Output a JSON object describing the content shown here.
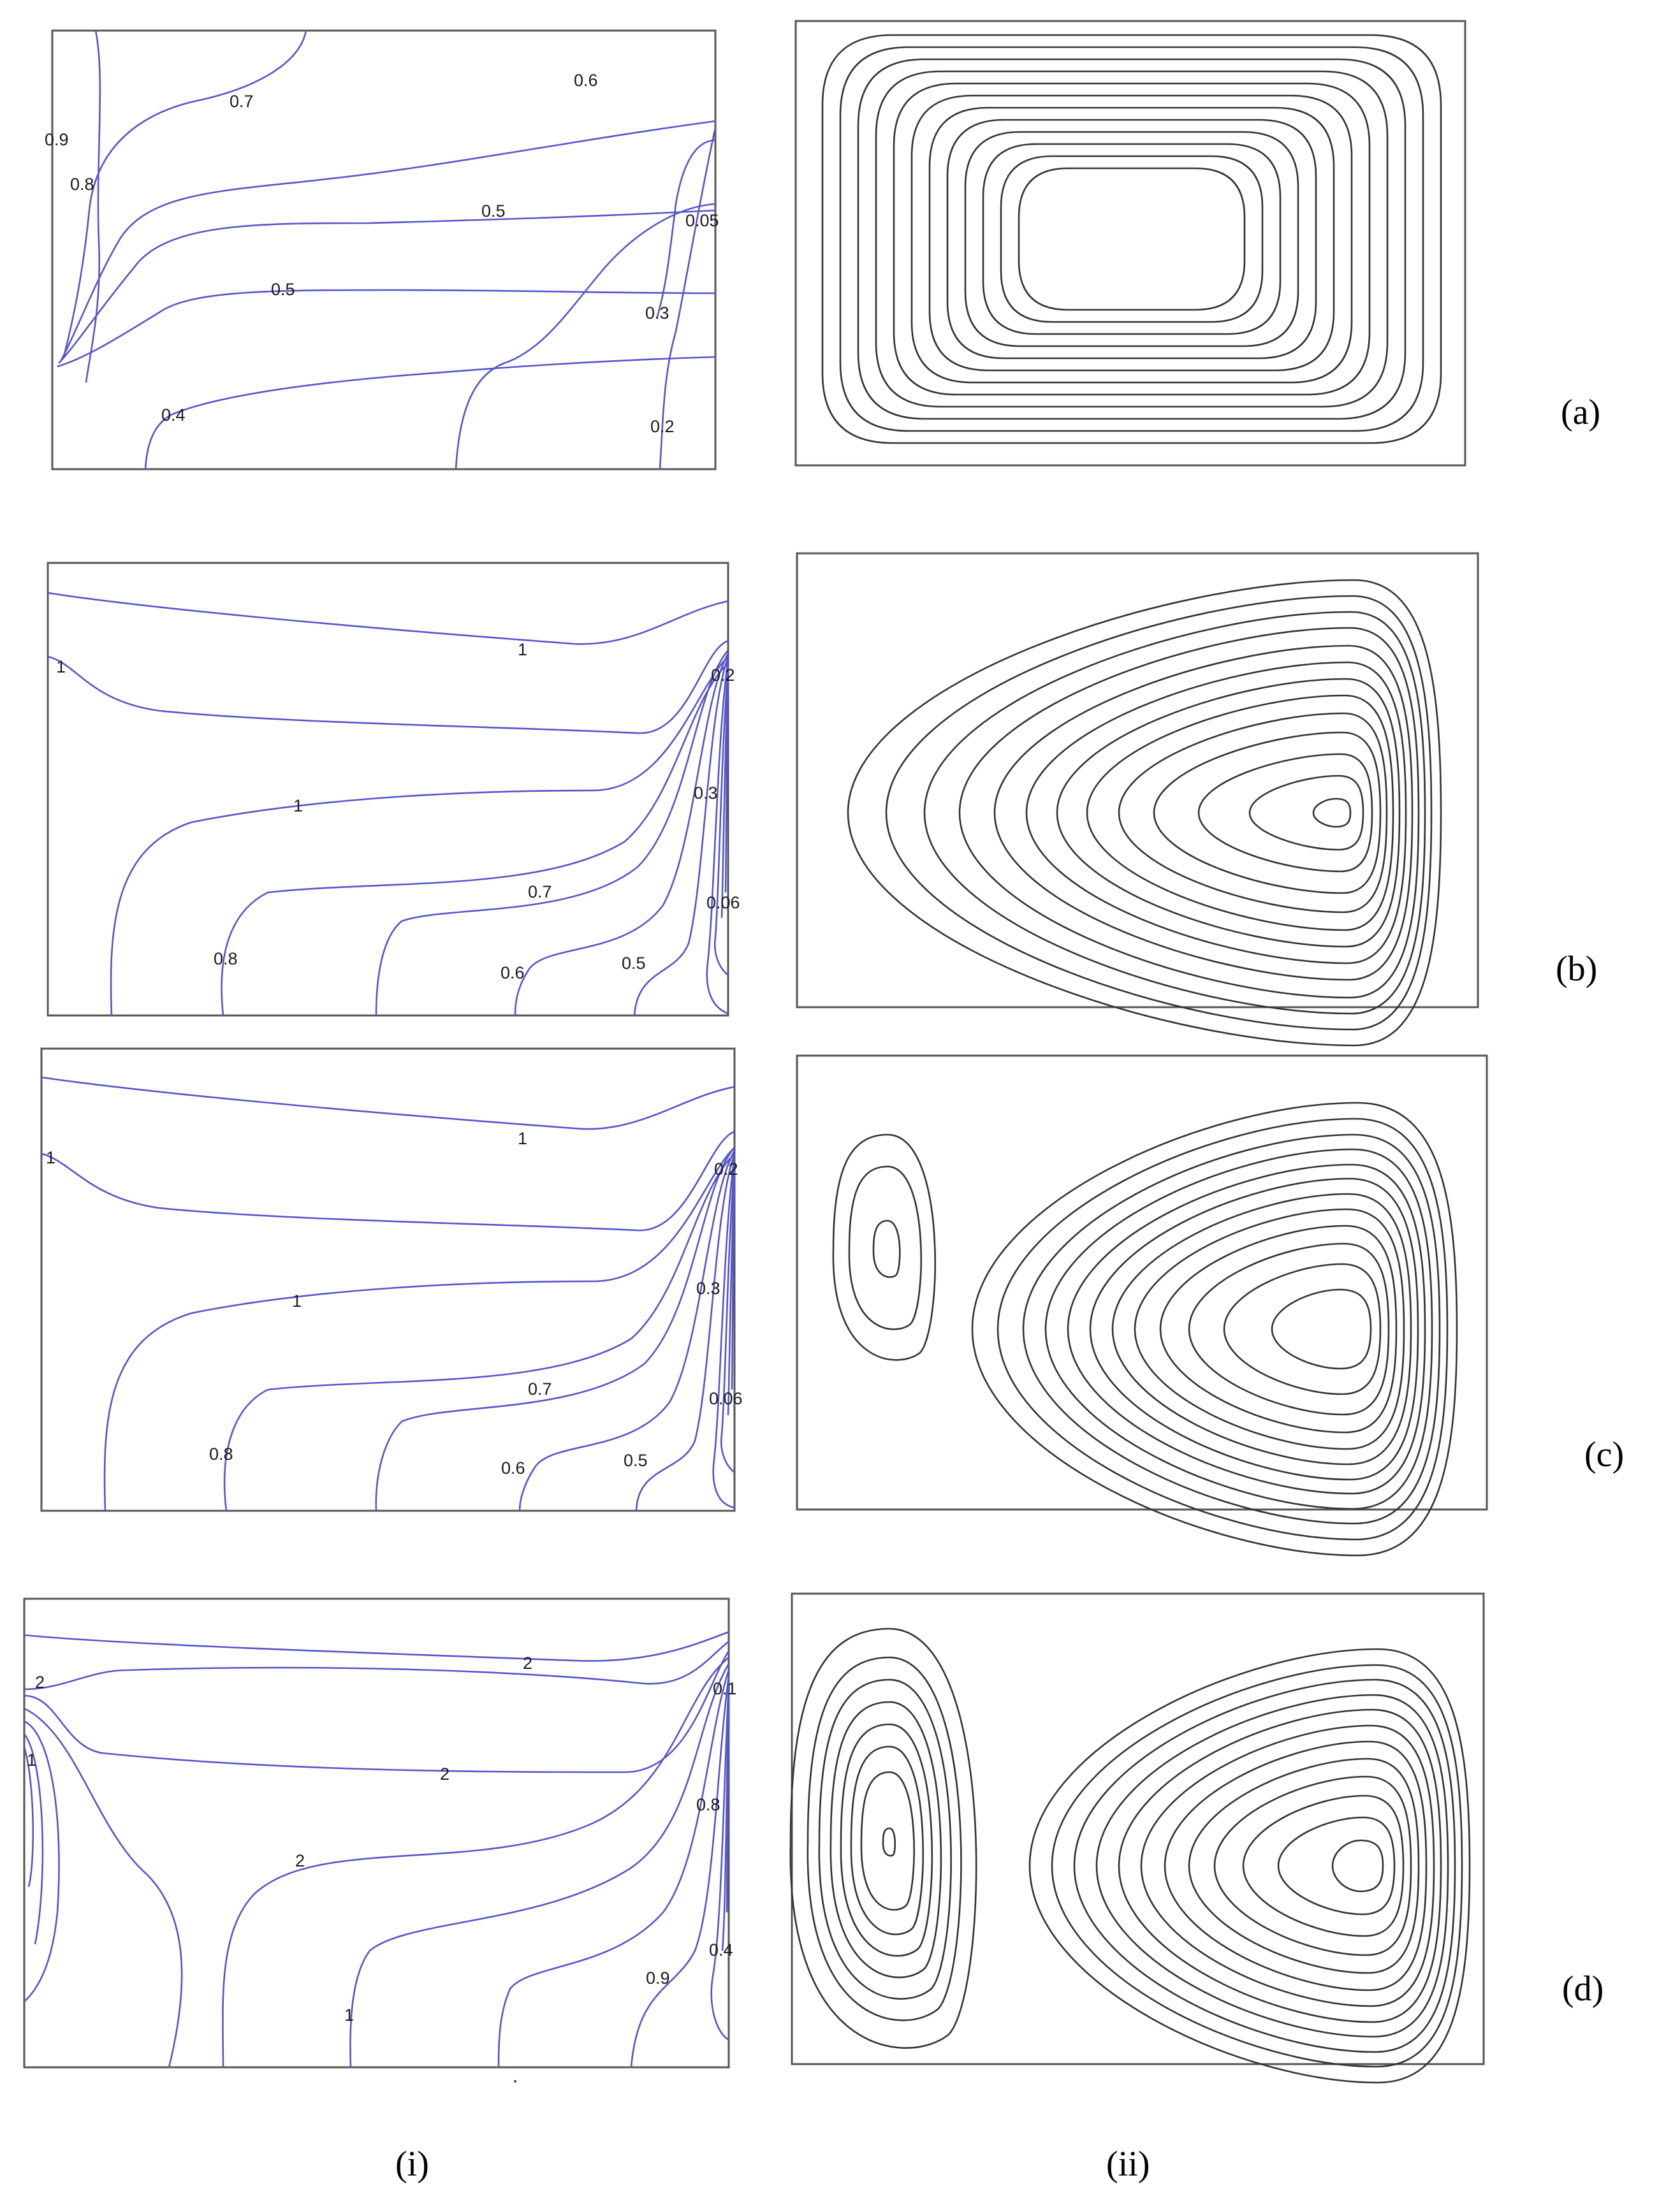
{
  "figure": {
    "row_labels": [
      "(a)",
      "(b)",
      "(c)",
      "(d)"
    ],
    "column_labels": [
      "(i)",
      "(ii)"
    ],
    "isotherm_colour": "#5555cc",
    "streamline_colour": "#333333"
  },
  "panels": {
    "a": {
      "contour_labels": [
        "0.7",
        "0.6",
        "0.9",
        "0.8",
        "0.5",
        "0.05",
        "0.5",
        "0.3",
        "0.4",
        "0.2"
      ]
    },
    "b": {
      "contour_labels": [
        "1",
        "1",
        "0.2",
        "1",
        "0.3",
        "0.7",
        "0.06",
        "0.8",
        "0.6",
        "0.5"
      ]
    },
    "c": {
      "contour_labels": [
        "1",
        "1",
        "0.2",
        "1",
        "0.3",
        "0.7",
        "0.06",
        "0.8",
        "0.6",
        "0.5"
      ]
    },
    "d": {
      "contour_labels": [
        "2",
        "2",
        "0.1",
        "1",
        "2",
        "0.8",
        "2",
        "0.4",
        "0.9",
        "1"
      ]
    }
  }
}
